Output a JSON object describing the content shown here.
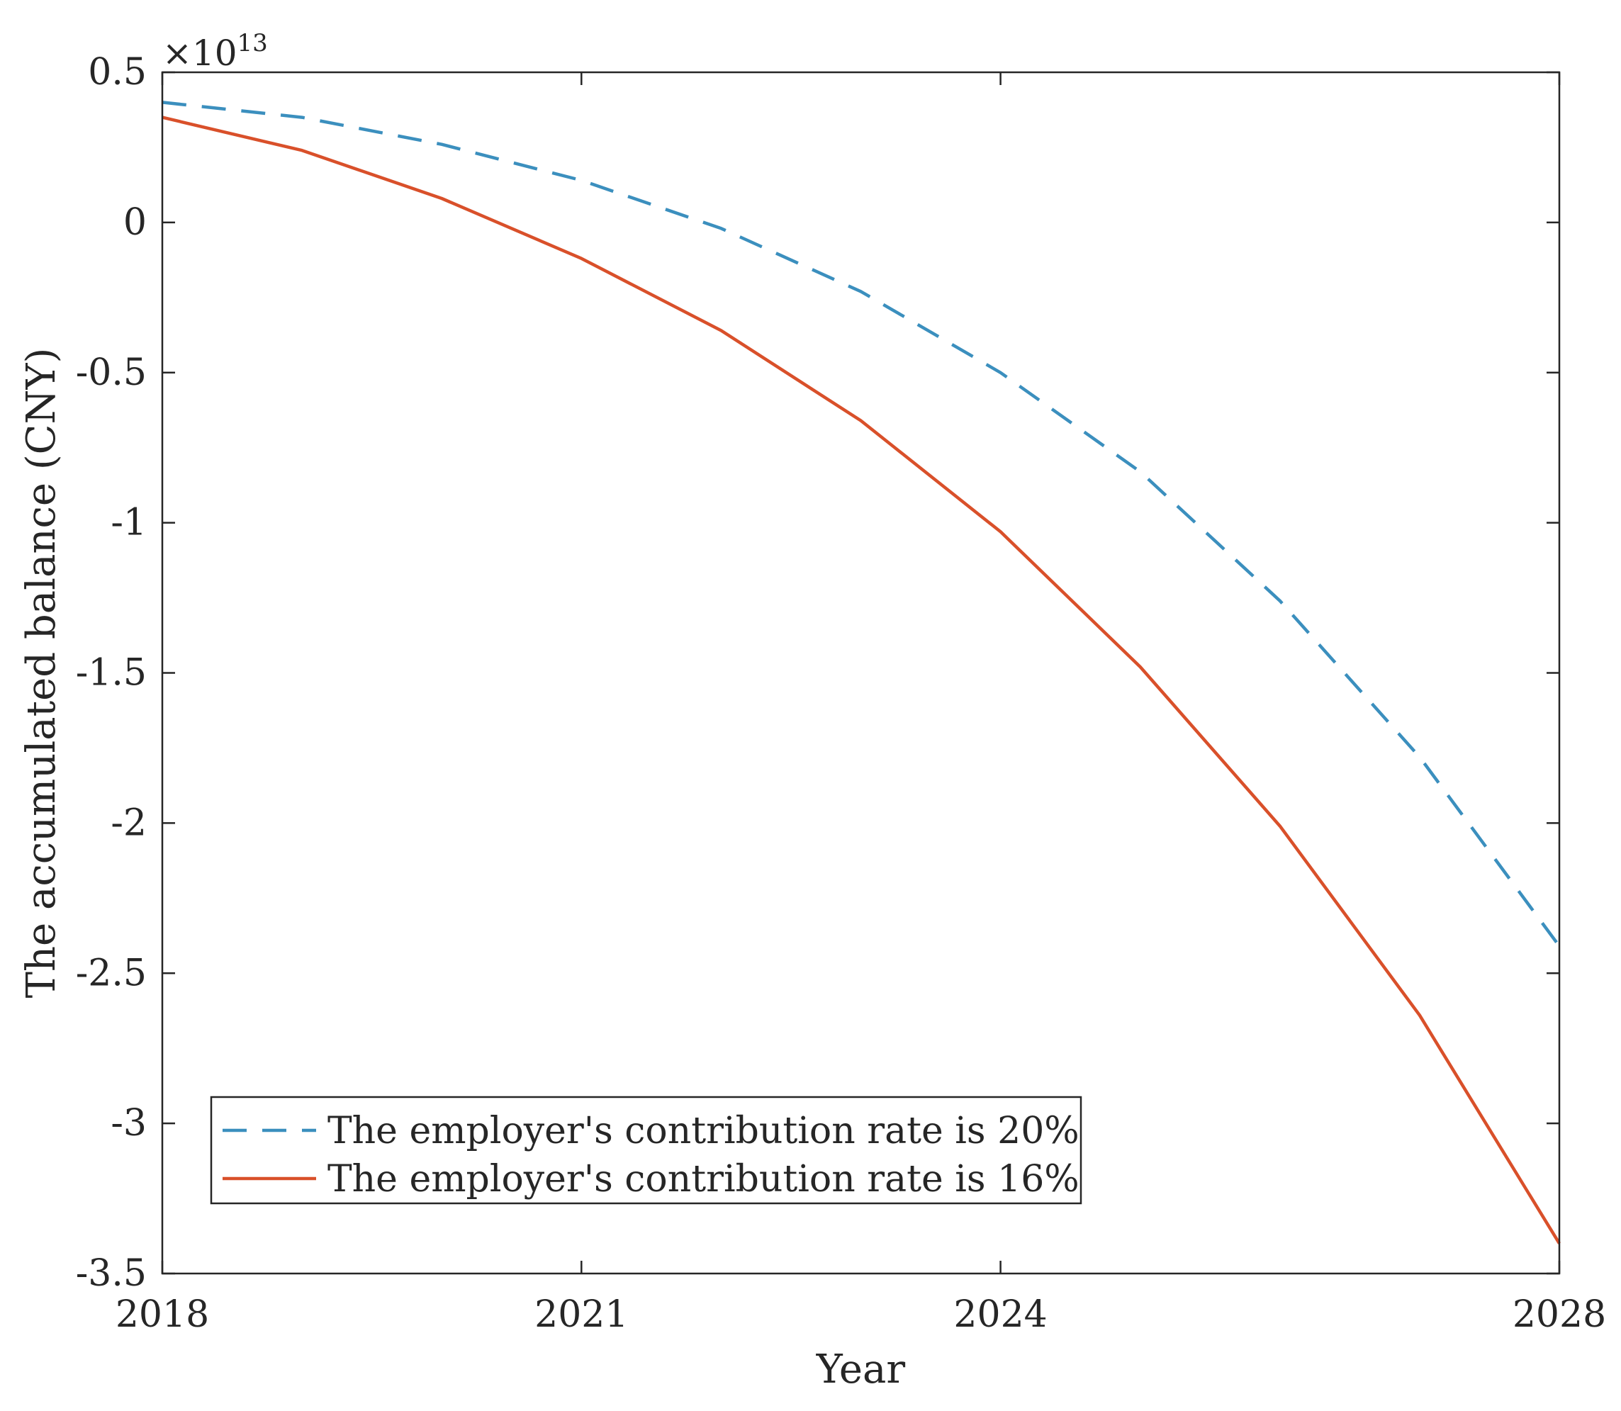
{
  "chart_data": {
    "type": "line",
    "title": "",
    "xlabel": "Year",
    "ylabel": "The accumulated balance (CNY)",
    "y_exponent_label": {
      "base": "×10",
      "power": "13"
    },
    "xlim": [
      2018,
      2028
    ],
    "ylim": [
      -3.5,
      0.5
    ],
    "x_ticks": [
      2018,
      2021,
      2024,
      2028
    ],
    "x_tick_labels": [
      "2018",
      "2021",
      "2024",
      "2028"
    ],
    "y_ticks": [
      0.5,
      0,
      -0.5,
      -1,
      -1.5,
      -2,
      -2.5,
      -3,
      -3.5
    ],
    "y_tick_labels": [
      "0.5",
      "0",
      "-0.5",
      "-1",
      "-1.5",
      "-2",
      "-2.5",
      "-3",
      "-3.5"
    ],
    "grid": false,
    "legend_position": "bottom-left",
    "x": [
      2018,
      2019,
      2020,
      2021,
      2022,
      2023,
      2024,
      2025,
      2026,
      2027,
      2028
    ],
    "series": [
      {
        "name": "The employer's contribution rate is 20%",
        "color": "#3b8fbe",
        "line_style": "dashed",
        "values": [
          0.4,
          0.35,
          0.26,
          0.14,
          -0.02,
          -0.23,
          -0.5,
          -0.83,
          -1.26,
          -1.78,
          -2.41
        ]
      },
      {
        "name": "The employer's contribution rate is 16%",
        "color": "#d9502a",
        "line_style": "solid",
        "values": [
          0.35,
          0.24,
          0.08,
          -0.12,
          -0.36,
          -0.66,
          -1.03,
          -1.48,
          -2.01,
          -2.64,
          -3.4
        ]
      }
    ]
  }
}
